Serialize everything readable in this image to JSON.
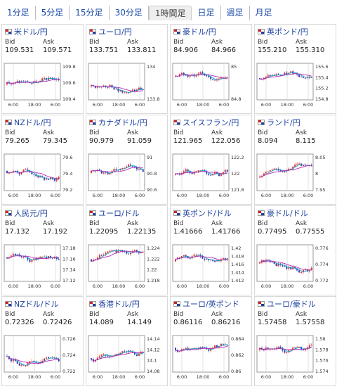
{
  "tabs": [
    "1分足",
    "5分足",
    "15分足",
    "30分足",
    "1時間足",
    "日足",
    "週足",
    "月足"
  ],
  "active_tab": "1時間足",
  "labels": {
    "bid": "Bid",
    "ask": "Ask"
  },
  "x_ticks": [
    "6:00",
    "18:00",
    "6:00"
  ],
  "colors": {
    "up": "#e03030",
    "down": "#2a3fb5",
    "ma_short": "#1aa7c4",
    "ma_long": "#b52ab5",
    "link": "#1a3fa0"
  },
  "pairs": [
    {
      "name": "米ドル/円",
      "bid": "109.531",
      "ask": "109.571",
      "yticks": [
        "109.8",
        "109.6",
        "109.4"
      ]
    },
    {
      "name": "ユーロ/円",
      "bid": "133.751",
      "ask": "133.811",
      "yticks": [
        "134",
        "133.8"
      ]
    },
    {
      "name": "豪ドル/円",
      "bid": "84.906",
      "ask": "84.966",
      "yticks": [
        "85",
        "84.8"
      ]
    },
    {
      "name": "英ポンド/円",
      "bid": "155.210",
      "ask": "155.310",
      "yticks": [
        "155.6",
        "155.4",
        "155.2",
        "154.8"
      ]
    },
    {
      "name": "NZドル/円",
      "bid": "79.265",
      "ask": "79.345",
      "yticks": [
        "79.6",
        "79.4",
        "79.2"
      ]
    },
    {
      "name": "カナダドル/円",
      "bid": "90.979",
      "ask": "91.059",
      "yticks": [
        "91",
        "90.8",
        "90.6"
      ]
    },
    {
      "name": "スイスフラン/円",
      "bid": "121.965",
      "ask": "122.056",
      "yticks": [
        "122.2",
        "122",
        "121.8"
      ]
    },
    {
      "name": "ランド/円",
      "bid": "8.094",
      "ask": "8.115",
      "yticks": [
        "8.05",
        "8",
        "7.95"
      ]
    },
    {
      "name": "人民元/円",
      "bid": "17.132",
      "ask": "17.192",
      "yticks": [
        "17.18",
        "17.16",
        "17.14",
        "17.12"
      ]
    },
    {
      "name": "ユーロ/ドル",
      "bid": "1.22095",
      "ask": "1.22135",
      "yticks": [
        "1.224",
        "1.222",
        "1.22",
        "1.218"
      ]
    },
    {
      "name": "英ポンド/ドル",
      "bid": "1.41666",
      "ask": "1.41766",
      "yticks": [
        "1.42",
        "1.418",
        "1.416",
        "1.414",
        "1.412"
      ]
    },
    {
      "name": "豪ドル/ドル",
      "bid": "0.77495",
      "ask": "0.77555",
      "yticks": [
        "0.776",
        "0.774",
        "0.772"
      ]
    },
    {
      "name": "NZドル/ドル",
      "bid": "0.72326",
      "ask": "0.72426",
      "yticks": [
        "0.726",
        "0.724",
        "0.722"
      ]
    },
    {
      "name": "香港ドル/円",
      "bid": "14.089",
      "ask": "14.149",
      "yticks": [
        "14.14",
        "14.12",
        "14.1",
        "14.08"
      ]
    },
    {
      "name": "ユーロ/英ポンド",
      "bid": "0.86116",
      "ask": "0.86216",
      "yticks": [
        "0.864",
        "0.862",
        "0.86"
      ]
    },
    {
      "name": "ユーロ/豪ドル",
      "bid": "1.57458",
      "ask": "1.57558",
      "yticks": [
        "1.58",
        "1.578",
        "1.576",
        "1.574"
      ]
    }
  ]
}
